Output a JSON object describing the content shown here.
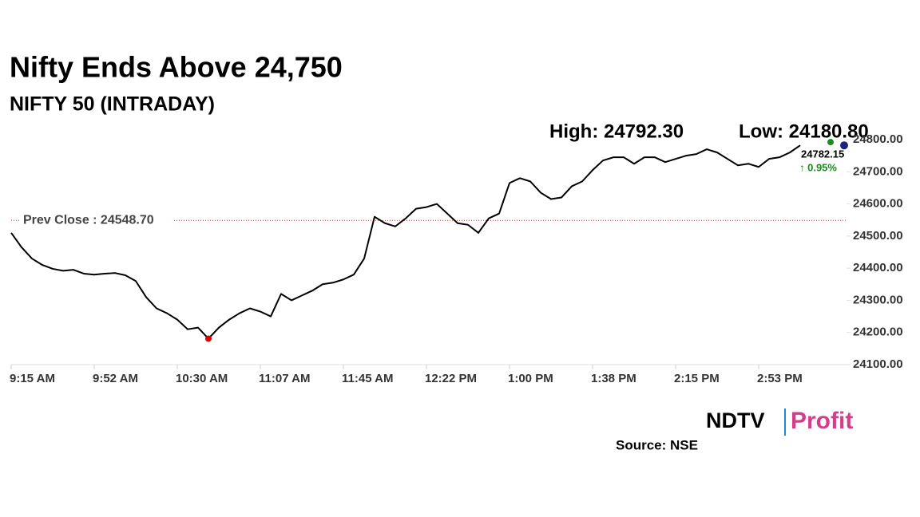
{
  "chart_data": {
    "type": "line",
    "title": "Nifty Ends Above 24,750",
    "subtitle": "NIFTY 50 (INTRADAY)",
    "high": {
      "value": 24792.3,
      "label": "High: 24792.30"
    },
    "low": {
      "value": 24180.8,
      "label": "Low: 24180.80"
    },
    "prev_close": {
      "value": 24548.7,
      "label": "Prev Close : 24548.70"
    },
    "last": {
      "value": 24782.15,
      "label": "24782.15"
    },
    "change": {
      "value": 0.95,
      "label": "↑ 0.95%"
    },
    "source": "Source: NSE",
    "brand": [
      "NDTV",
      "Profit"
    ],
    "categories": [
      "9:15 AM",
      null,
      null,
      null,
      null,
      null,
      null,
      null,
      "9:52 AM",
      null,
      null,
      null,
      null,
      null,
      null,
      null,
      "10:30 AM",
      null,
      null,
      null,
      null,
      null,
      null,
      null,
      "11:07 AM",
      null,
      null,
      null,
      null,
      null,
      null,
      null,
      "11:45 AM",
      null,
      null,
      null,
      null,
      null,
      null,
      null,
      "12:22 PM",
      null,
      null,
      null,
      null,
      null,
      null,
      null,
      "1:00 PM",
      null,
      null,
      null,
      null,
      null,
      null,
      null,
      "1:38 PM",
      null,
      null,
      null,
      null,
      null,
      null,
      null,
      "2:15 PM",
      null,
      null,
      null,
      null,
      null,
      null,
      null,
      "2:53 PM",
      null,
      null,
      null,
      null
    ],
    "series": [
      {
        "name": "NIFTY 50",
        "color": "#000000",
        "values": [
          24510,
          24465,
          24430,
          24410,
          24398,
          24392,
          24395,
          24383,
          24380,
          24383,
          24385,
          24378,
          24360,
          24310,
          24275,
          24260,
          24240,
          24210,
          24215,
          24180.8,
          24215,
          24240,
          24260,
          24275,
          24265,
          24250,
          24320,
          24300,
          24315,
          24330,
          24350,
          24355,
          24365,
          24380,
          24430,
          24560,
          24540,
          24530,
          24555,
          24585,
          24590,
          24600,
          24570,
          24540,
          24535,
          24510,
          24555,
          24570,
          24665,
          24680,
          24670,
          24635,
          24615,
          24620,
          24655,
          24670,
          24705,
          24735,
          24745,
          24745,
          24725,
          24745,
          24745,
          24730,
          24740,
          24750,
          24755,
          24770,
          24760,
          24740,
          24720,
          24725,
          24715,
          24740,
          24745,
          24760,
          24782.15
        ]
      }
    ],
    "ylim": [
      24100,
      24800
    ],
    "yticks": [
      {
        "value": 24100,
        "label": "24100.00"
      },
      {
        "value": 24200,
        "label": "24200.00"
      },
      {
        "value": 24300,
        "label": "24300.00"
      },
      {
        "value": 24400,
        "label": "24400.00"
      },
      {
        "value": 24500,
        "label": "24500.00"
      },
      {
        "value": 24600,
        "label": "24600.00"
      },
      {
        "value": 24700,
        "label": "24700.00"
      },
      {
        "value": 24800,
        "label": "24800.00"
      }
    ],
    "grid": false
  }
}
